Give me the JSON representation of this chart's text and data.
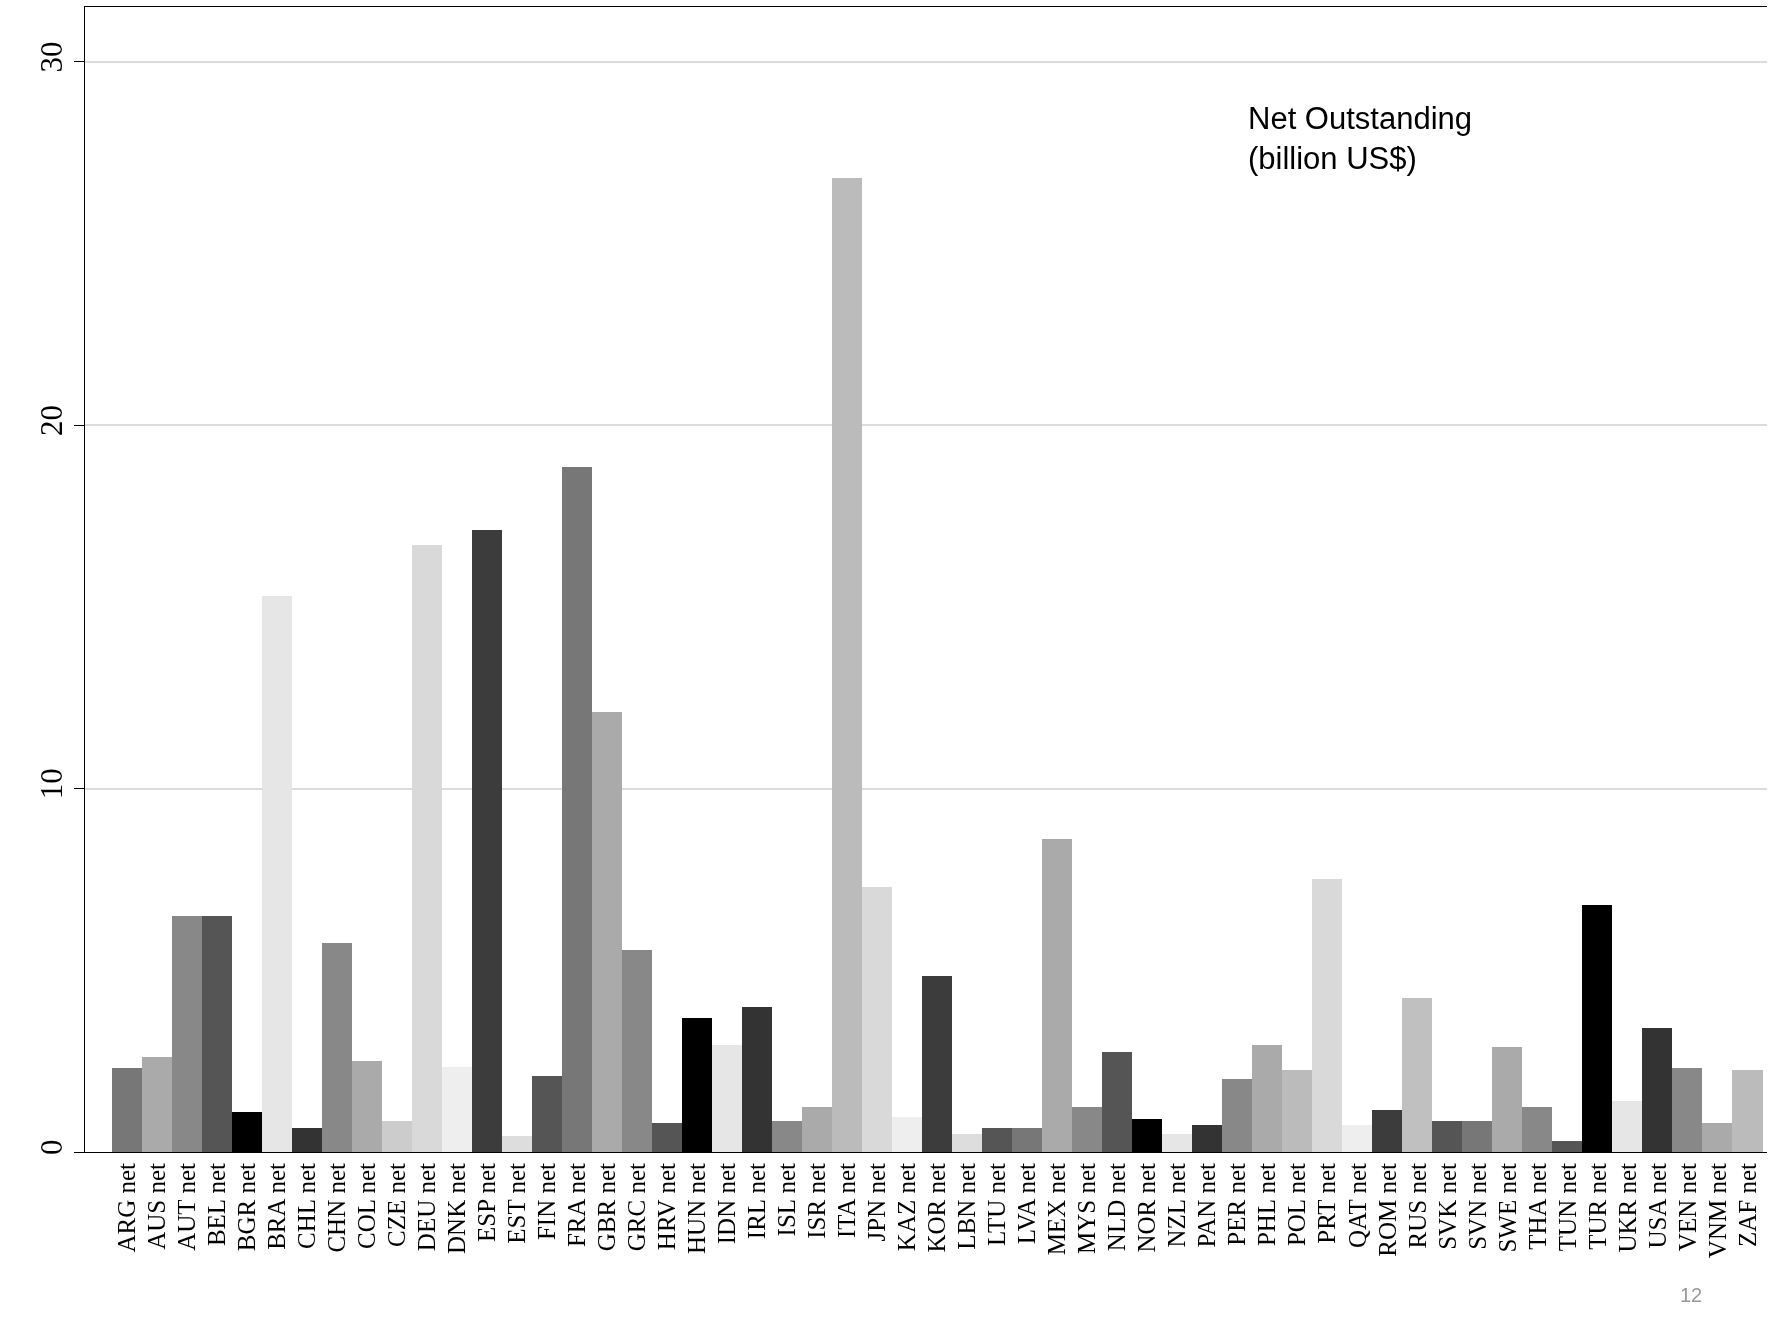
{
  "chart_data": {
    "type": "bar",
    "categories": [
      "ARG net",
      "AUS net",
      "AUT net",
      "BEL net",
      "BGR net",
      "BRA net",
      "CHL net",
      "CHN net",
      "COL net",
      "CZE net",
      "DEU net",
      "DNK net",
      "ESP net",
      "EST net",
      "FIN net",
      "FRA net",
      "GBR net",
      "GRC net",
      "HRV net",
      "HUN net",
      "IDN net",
      "IRL net",
      "ISL net",
      "ISR net",
      "ITA net",
      "JPN net",
      "KAZ net",
      "KOR net",
      "LBN net",
      "LTU net",
      "LVA net",
      "MEX net",
      "MYS net",
      "NLD net",
      "NOR net",
      "NZL net",
      "PAN net",
      "PER net",
      "PHL net",
      "POL net",
      "PRT net",
      "QAT net",
      "ROM net",
      "RUS net",
      "SVK net",
      "SVN net",
      "SWE net",
      "THA net",
      "TUN net",
      "TUR net",
      "UKR net",
      "USA net",
      "VEN net",
      "VNM net",
      "ZAF net"
    ],
    "values": [
      2.3,
      2.6,
      6.5,
      6.5,
      1.1,
      15.3,
      0.65,
      5.75,
      2.5,
      0.85,
      16.7,
      2.35,
      17.1,
      0.45,
      2.1,
      18.85,
      12.1,
      5.55,
      0.8,
      3.7,
      2.95,
      4.0,
      0.85,
      1.25,
      26.8,
      7.3,
      0.95,
      4.85,
      0.5,
      0.65,
      0.65,
      8.6,
      1.25,
      2.75,
      0.9,
      0.5,
      0.75,
      2.0,
      2.95,
      2.25,
      7.5,
      0.75,
      1.15,
      4.25,
      0.85,
      0.85,
      2.9,
      1.25,
      0.3,
      6.8,
      1.4,
      3.4,
      2.3,
      0.8,
      2.25
    ],
    "colors": [
      "#777777",
      "#aaaaaa",
      "#888888",
      "#555555",
      "#000000",
      "#e6e6e6",
      "#333333",
      "#888888",
      "#aaaaaa",
      "#cccccc",
      "#d9d9d9",
      "#eeeeee",
      "#3c3c3c",
      "#dddddd",
      "#555555",
      "#777777",
      "#aaaaaa",
      "#888888",
      "#555555",
      "#000000",
      "#e6e6e6",
      "#333333",
      "#888888",
      "#aaaaaa",
      "#bbbbbb",
      "#d9d9d9",
      "#eeeeee",
      "#3c3c3c",
      "#dddddd",
      "#555555",
      "#777777",
      "#aaaaaa",
      "#888888",
      "#555555",
      "#000000",
      "#e6e6e6",
      "#333333",
      "#888888",
      "#aaaaaa",
      "#bbbbbb",
      "#d9d9d9",
      "#eeeeee",
      "#3c3c3c",
      "#c0c0c0",
      "#555555",
      "#777777",
      "#aaaaaa",
      "#888888",
      "#555555",
      "#000000",
      "#e6e6e6",
      "#333333",
      "#888888",
      "#aaaaaa",
      "#bbbbbb"
    ],
    "ylim": [
      0,
      31.5
    ],
    "yticks": [
      0,
      10,
      20,
      30
    ],
    "grid": "y",
    "annotations": [
      "Net Outstanding\n(billion US$)",
      "12"
    ]
  }
}
